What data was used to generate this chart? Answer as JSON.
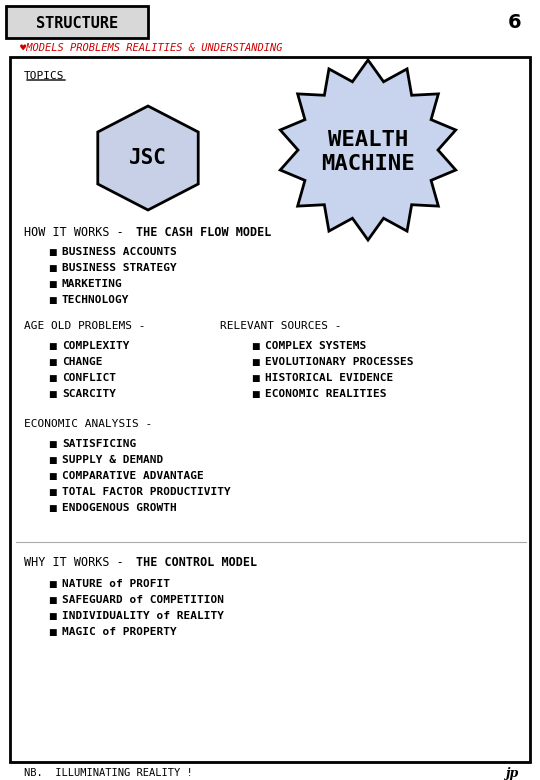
{
  "page_number": "6",
  "title_box_text": "STRUCTURE",
  "subtitle_text": "♥MODELS PROBLEMS REALITIES & UNDERSTANDING",
  "subtitle_color": "#cc0000",
  "topics_label": "TOPICS",
  "jsc_label": "JSC",
  "section1_header_normal": "HOW IT WORKS - ",
  "section1_header_bold": "THE CASH FLOW MODEL",
  "section1_bullets": [
    "BUSINESS ACCOUNTS",
    "BUSINESS STRATEGY",
    "MARKETING",
    "TECHNOLOGY"
  ],
  "section2_left_header": "AGE OLD PROBLEMS -",
  "section2_right_header": "RELEVANT SOURCES -",
  "section2_left_bullets": [
    "COMPLEXITY",
    "CHANGE",
    "CONFLICT",
    "SCARCITY"
  ],
  "section2_right_bullets": [
    "COMPLEX SYSTEMS",
    "EVOLUTIONARY PROCESSES",
    "HISTORICAL EVIDENCE",
    "ECONOMIC REALITIES"
  ],
  "section3_header": "ECONOMIC ANALYSIS -",
  "section3_bullets": [
    "SATISFICING",
    "SUPPLY & DEMAND",
    "COMPARATIVE ADVANTAGE",
    "TOTAL FACTOR PRODUCTIVITY",
    "ENDOGENOUS GROWTH"
  ],
  "section4_header_normal": "WHY IT WORKS - ",
  "section4_header_bold": "THE CONTROL MODEL",
  "section4_bullets": [
    "NATURE of PROFIT",
    "SAFEGUARD of COMPETITION",
    "INDIVIDUALITY of REALITY",
    "MAGIC of PROPERTY"
  ],
  "footer_text": "NB.  ILLUMINATING REALITY !",
  "bg_color": "#ffffff",
  "hex_fill": "#c8d0e8",
  "star_fill": "#c8d4ee",
  "main_border_color": "#000000",
  "text_color": "#000000",
  "figw": 5.4,
  "figh": 7.8,
  "dpi": 100
}
